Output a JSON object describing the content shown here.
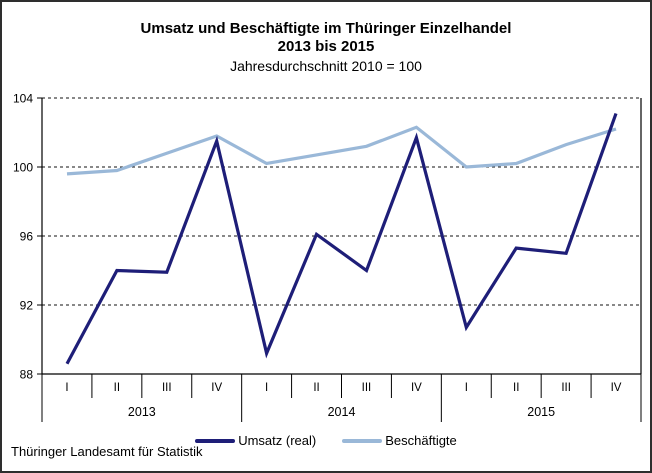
{
  "header": {
    "title_line1": "Umsatz und Beschäftigte im Thüringer Einzelhandel",
    "title_line2": "2013 bis 2015",
    "subtitle": "Jahresdurchschnitt 2010 = 100"
  },
  "chart_data": {
    "type": "line",
    "x_quarters": [
      "I",
      "II",
      "III",
      "IV",
      "I",
      "II",
      "III",
      "IV",
      "I",
      "II",
      "III",
      "IV"
    ],
    "years": [
      "2013",
      "2014",
      "2015"
    ],
    "series": [
      {
        "name": "Umsatz (real)",
        "color": "#1e1e78",
        "values": [
          88.6,
          94.0,
          93.9,
          101.5,
          89.2,
          96.1,
          94.0,
          101.7,
          90.7,
          95.3,
          95.0,
          103.1
        ]
      },
      {
        "name": "Beschäftigte",
        "color": "#9ab8d8",
        "values": [
          99.6,
          99.8,
          100.8,
          101.8,
          100.2,
          100.7,
          101.2,
          102.3,
          100.0,
          100.2,
          101.3,
          102.2
        ]
      }
    ],
    "ylim": [
      88,
      104
    ],
    "yticks": [
      88,
      92,
      96,
      100,
      104
    ],
    "grid": "horizontal-dashed",
    "legend_position": "bottom"
  },
  "footer": {
    "source": "Thüringer Landesamt für Statistik"
  }
}
